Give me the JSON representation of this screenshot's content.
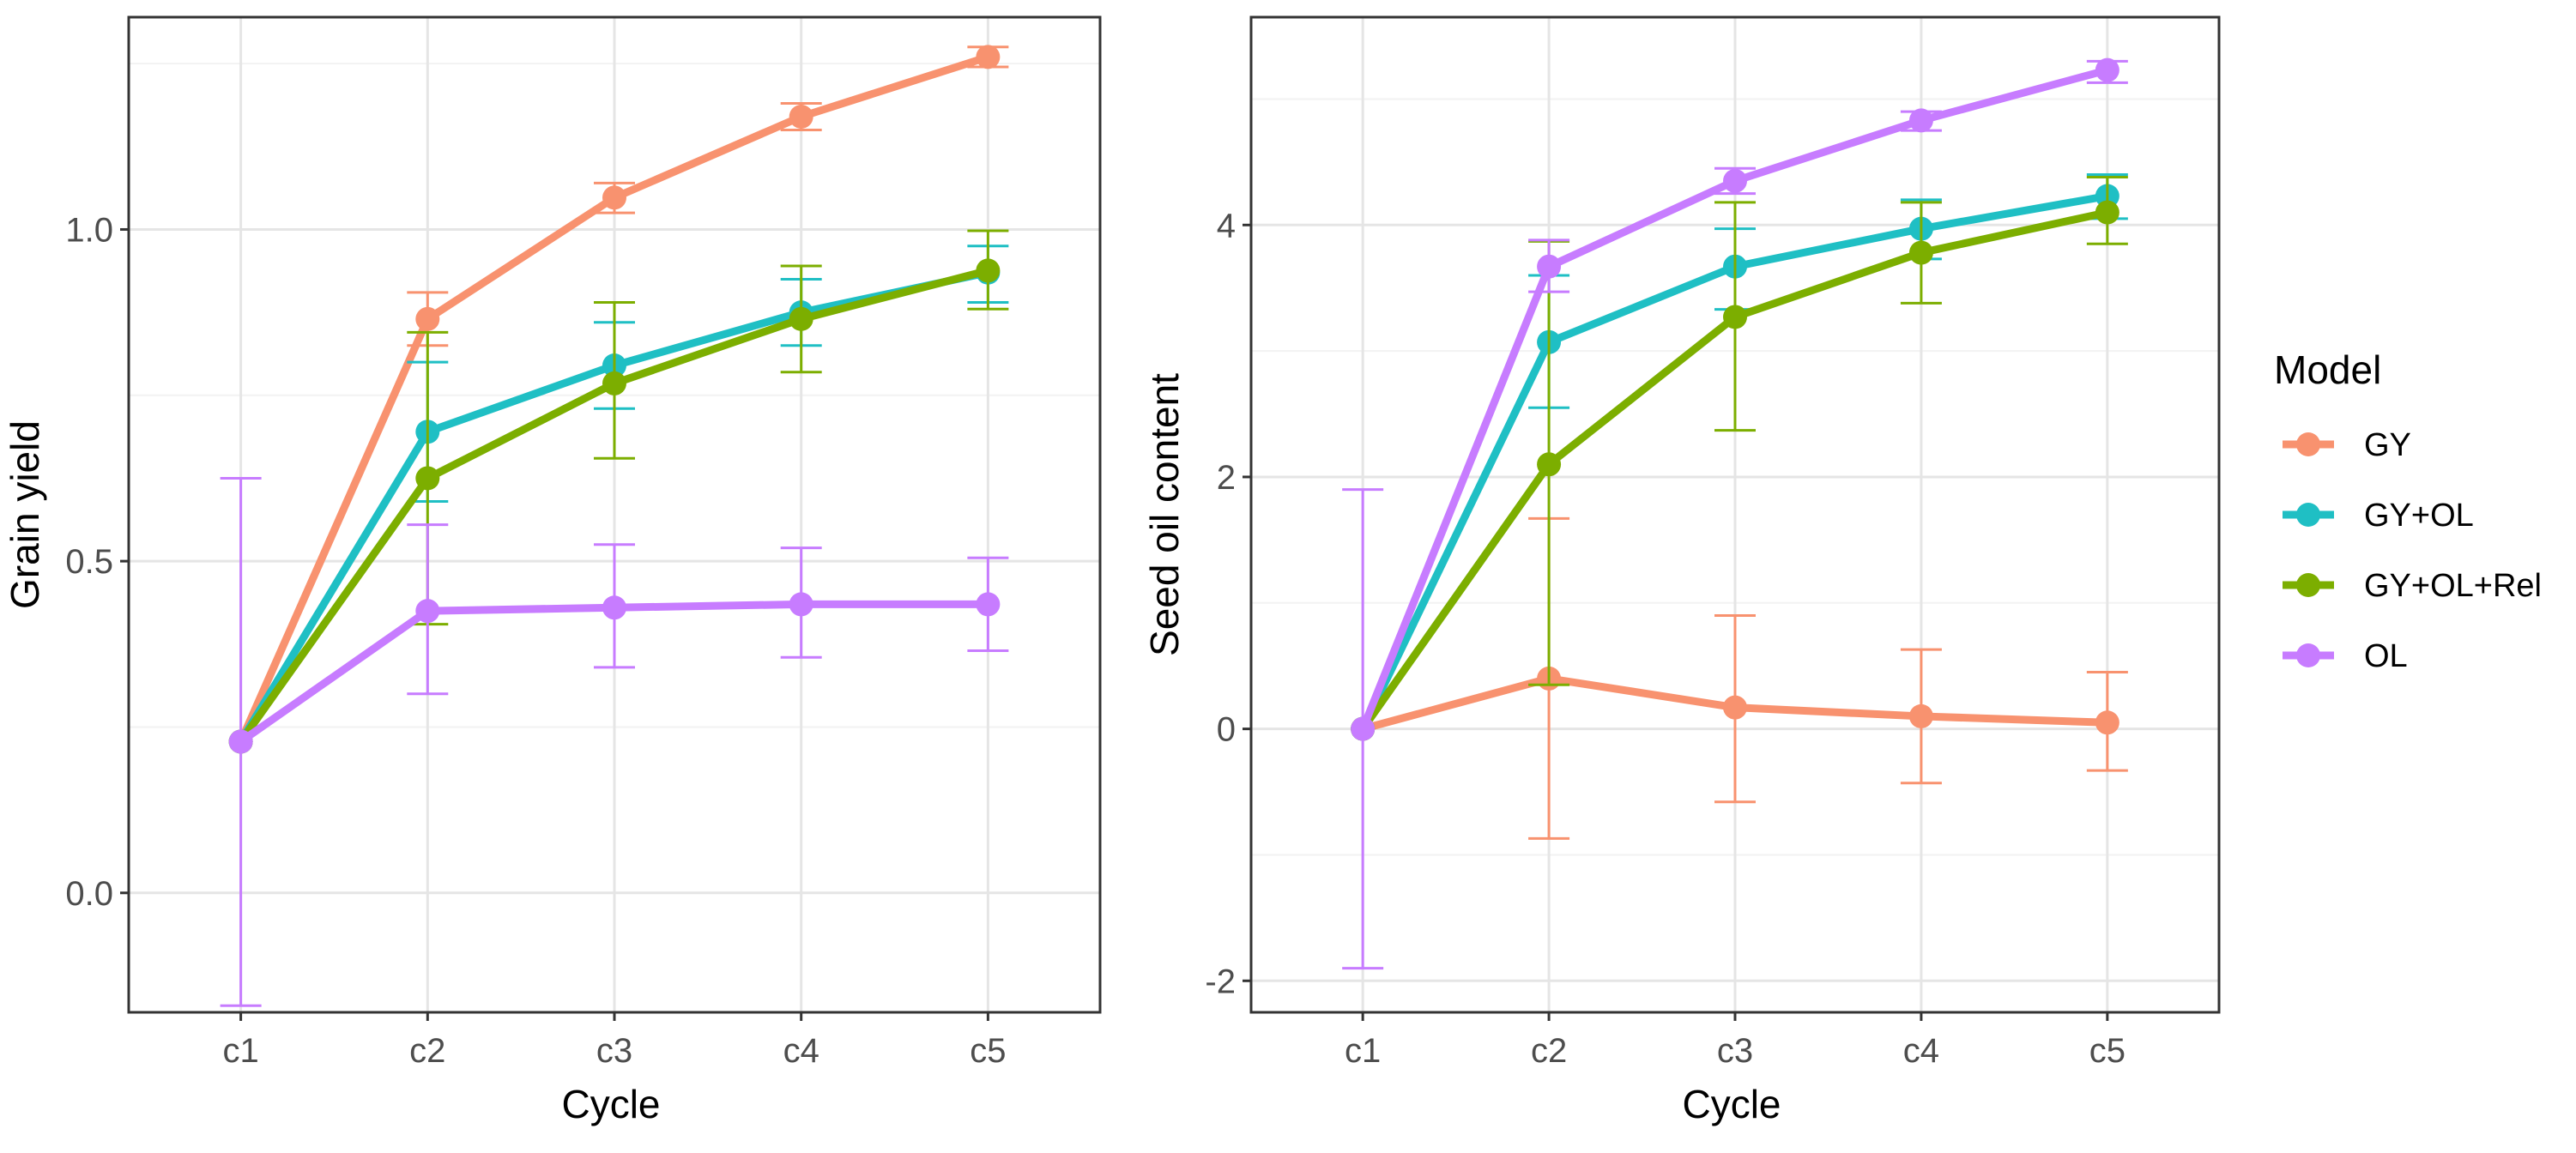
{
  "chart_data": [
    {
      "type": "line",
      "xlabel": "Cycle",
      "ylabel": "Grain yield",
      "categories": [
        "c1",
        "c2",
        "c3",
        "c4",
        "c5"
      ],
      "ylim": [
        -0.18,
        1.32
      ],
      "yticks": [
        0.0,
        0.5,
        1.0
      ],
      "ytick_labels": [
        "0.0",
        "0.5",
        "1.0"
      ],
      "grid": true,
      "error_bars": true,
      "series": [
        {
          "name": "GY",
          "color": "#F8926F",
          "values": [
            0.228,
            0.865,
            1.048,
            1.17,
            1.26
          ],
          "err_low": [
            null,
            0.825,
            1.025,
            1.15,
            1.245
          ],
          "err_high": [
            null,
            0.905,
            1.07,
            1.19,
            1.275
          ]
        },
        {
          "name": "GY+OL",
          "color": "#1FBFC4",
          "values": [
            0.228,
            0.695,
            0.795,
            0.875,
            0.935
          ],
          "err_low": [
            null,
            0.59,
            0.73,
            0.825,
            0.89
          ],
          "err_high": [
            null,
            0.8,
            0.86,
            0.925,
            0.975
          ]
        },
        {
          "name": "GY+OL+Rel",
          "color": "#7CAE00",
          "values": [
            0.228,
            0.625,
            0.768,
            0.865,
            0.938
          ],
          "err_low": [
            null,
            0.405,
            0.655,
            0.785,
            0.88
          ],
          "err_high": [
            null,
            0.845,
            0.89,
            0.945,
            0.998
          ]
        },
        {
          "name": "OL",
          "color": "#C77CFF",
          "values": [
            0.228,
            0.425,
            0.43,
            0.435,
            0.435
          ],
          "err_low": [
            -0.17,
            0.3,
            0.34,
            0.355,
            0.365
          ],
          "err_high": [
            0.625,
            0.555,
            0.525,
            0.52,
            0.505
          ]
        }
      ]
    },
    {
      "type": "line",
      "xlabel": "Cycle",
      "ylabel": "Seed oil content",
      "categories": [
        "c1",
        "c2",
        "c3",
        "c4",
        "c5"
      ],
      "ylim": [
        -2.25,
        5.65
      ],
      "yticks": [
        -2,
        0,
        2,
        4
      ],
      "ytick_labels": [
        "-2",
        "0",
        "2",
        "4"
      ],
      "grid": true,
      "error_bars": true,
      "series": [
        {
          "name": "GY",
          "color": "#F8926F",
          "values": [
            0.0,
            0.4,
            0.17,
            0.1,
            0.05
          ],
          "err_low": [
            null,
            -0.87,
            -0.58,
            -0.43,
            -0.33
          ],
          "err_high": [
            null,
            1.67,
            0.9,
            0.63,
            0.45
          ]
        },
        {
          "name": "GY+OL",
          "color": "#1FBFC4",
          "values": [
            0.0,
            3.07,
            3.67,
            3.97,
            4.23
          ],
          "err_low": [
            null,
            2.55,
            3.33,
            3.73,
            4.05
          ],
          "err_high": [
            null,
            3.6,
            3.97,
            4.2,
            4.4
          ]
        },
        {
          "name": "GY+OL+Rel",
          "color": "#7CAE00",
          "values": [
            0.0,
            2.1,
            3.27,
            3.78,
            4.1
          ],
          "err_low": [
            null,
            0.35,
            2.37,
            3.38,
            3.85
          ],
          "err_high": [
            null,
            3.87,
            4.18,
            4.18,
            4.38
          ]
        },
        {
          "name": "OL",
          "color": "#C77CFF",
          "values": [
            0.0,
            3.67,
            4.35,
            4.83,
            5.23
          ],
          "err_low": [
            -1.9,
            3.47,
            4.25,
            4.75,
            5.13
          ],
          "err_high": [
            1.9,
            3.88,
            4.45,
            4.9,
            5.3
          ]
        }
      ]
    }
  ],
  "legend": {
    "title": "Model",
    "placement": "right",
    "items": [
      {
        "label": "GY",
        "color": "#F8926F"
      },
      {
        "label": "GY+OL",
        "color": "#1FBFC4"
      },
      {
        "label": "GY+OL+Rel",
        "color": "#7CAE00"
      },
      {
        "label": "OL",
        "color": "#C77CFF"
      }
    ]
  }
}
